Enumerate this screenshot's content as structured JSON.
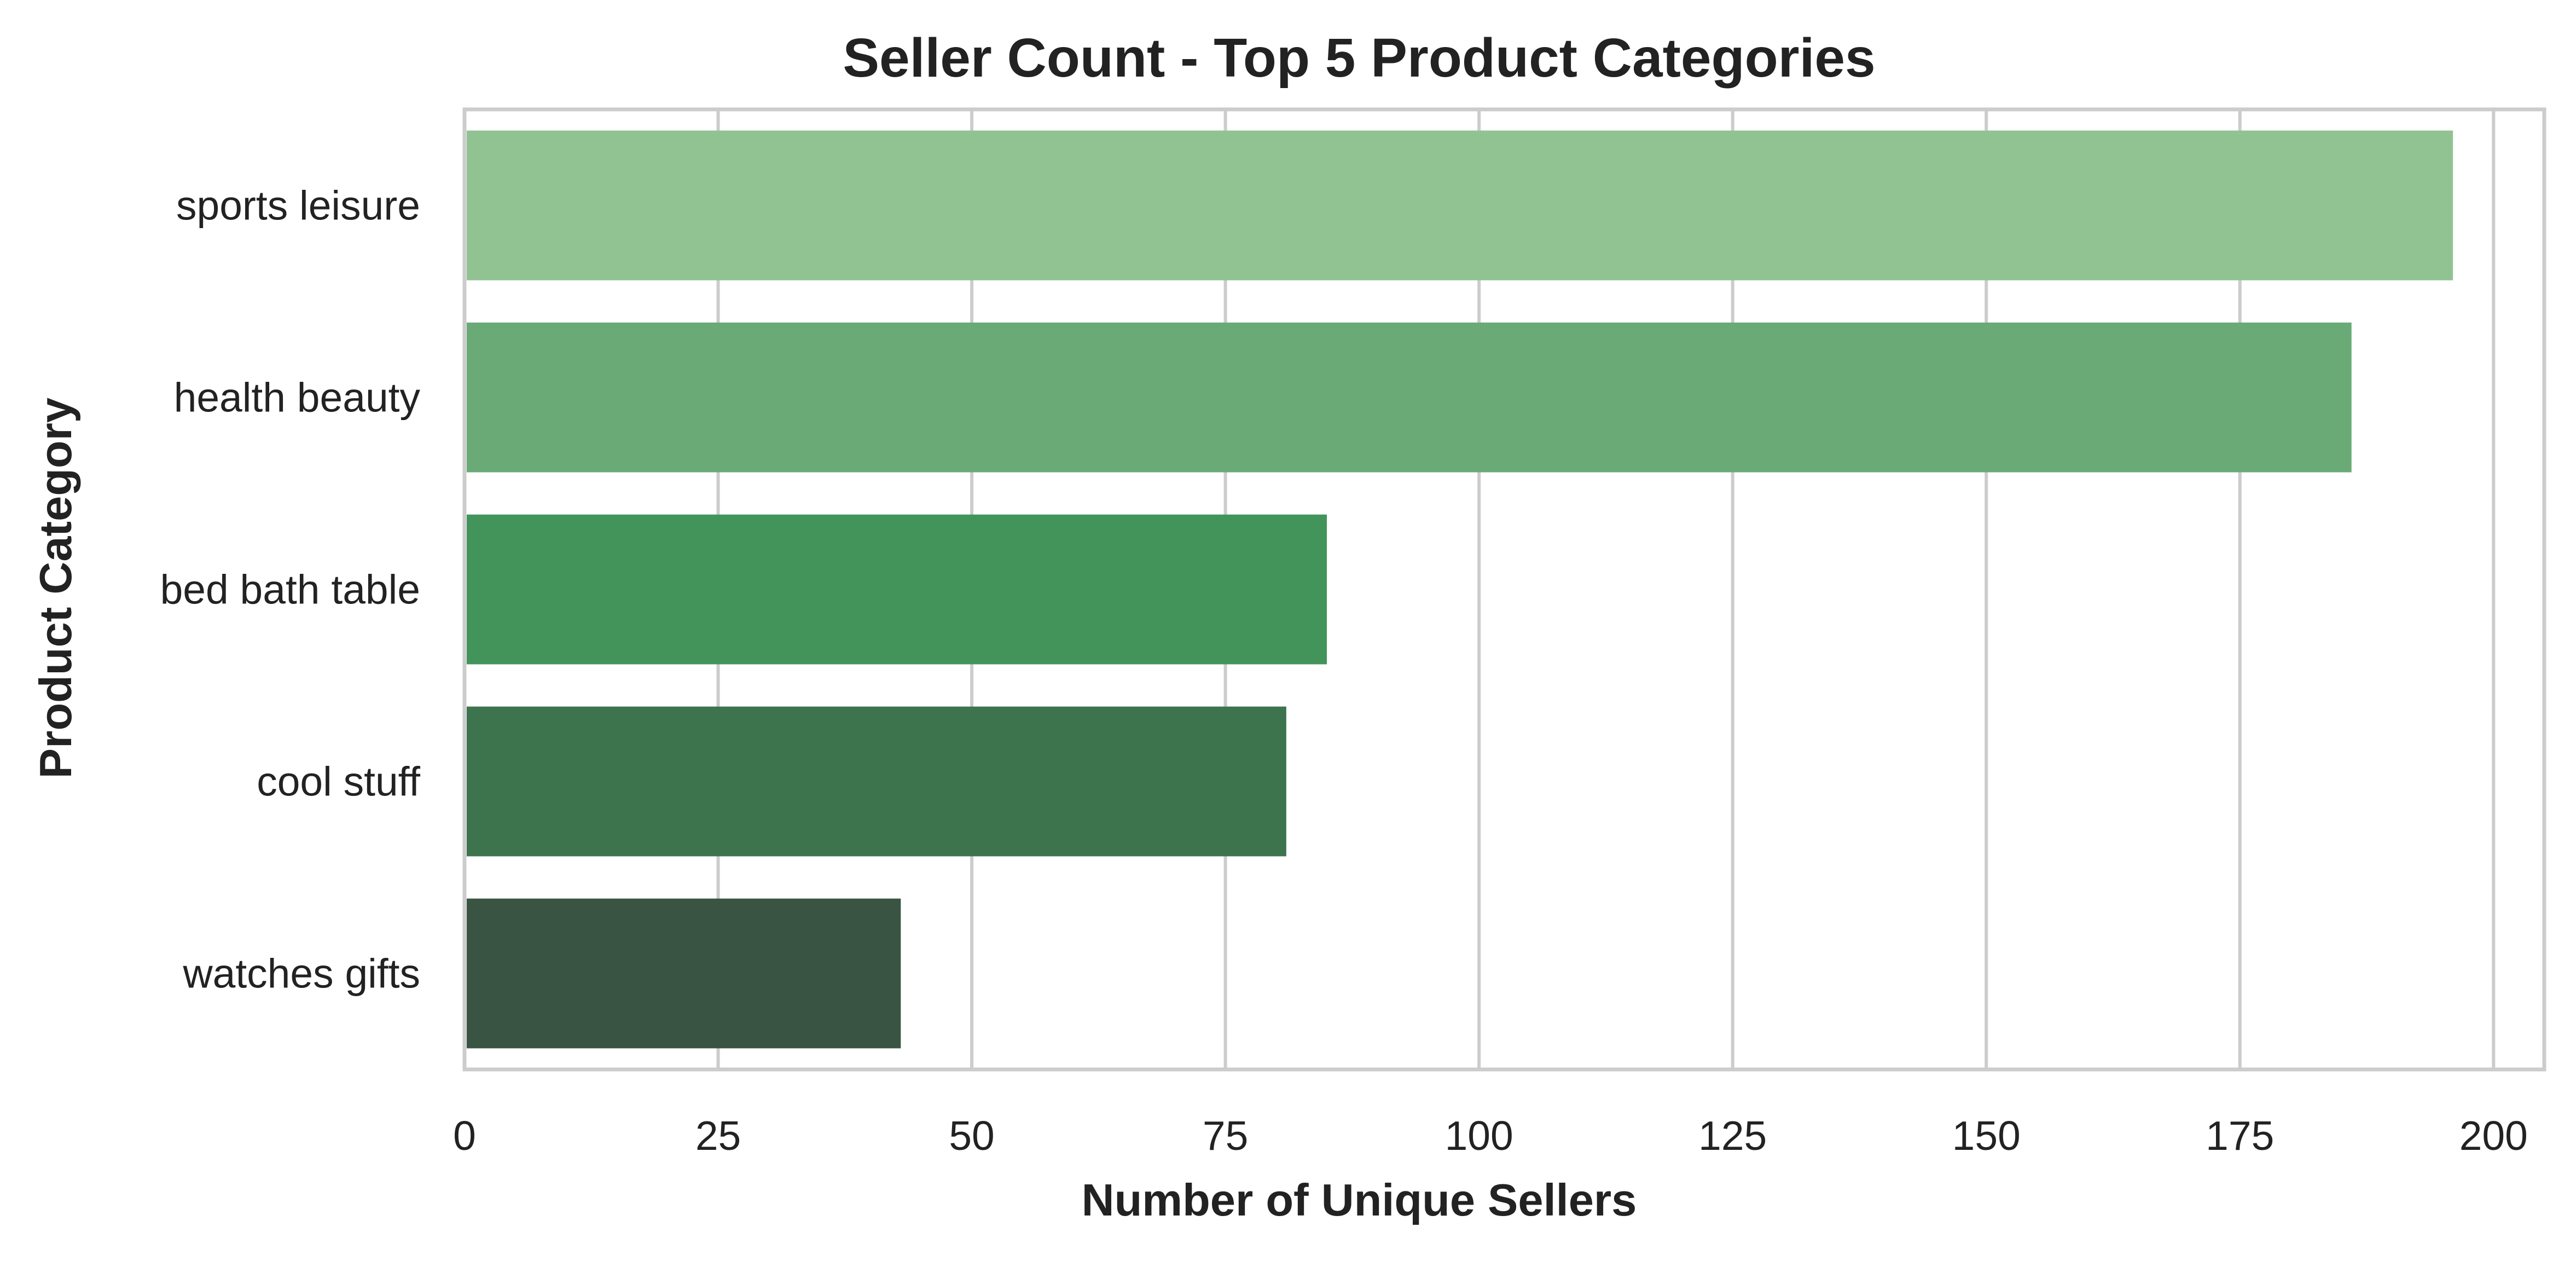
{
  "chart_data": {
    "type": "bar",
    "orientation": "horizontal",
    "title": "Seller Count - Top 5 Product Categories",
    "xlabel": "Number of Unique Sellers",
    "ylabel": "Product Category",
    "categories": [
      "sports leisure",
      "health beauty",
      "bed bath table",
      "cool stuff",
      "watches gifts"
    ],
    "values": [
      196,
      186,
      85,
      81,
      43
    ],
    "colors": [
      "#91c392",
      "#69aa76",
      "#42945a",
      "#3e744d",
      "#3a5444"
    ],
    "xlim": [
      0,
      205
    ],
    "xticks": [
      0,
      25,
      50,
      75,
      100,
      125,
      150,
      175,
      200
    ],
    "grid": true
  }
}
